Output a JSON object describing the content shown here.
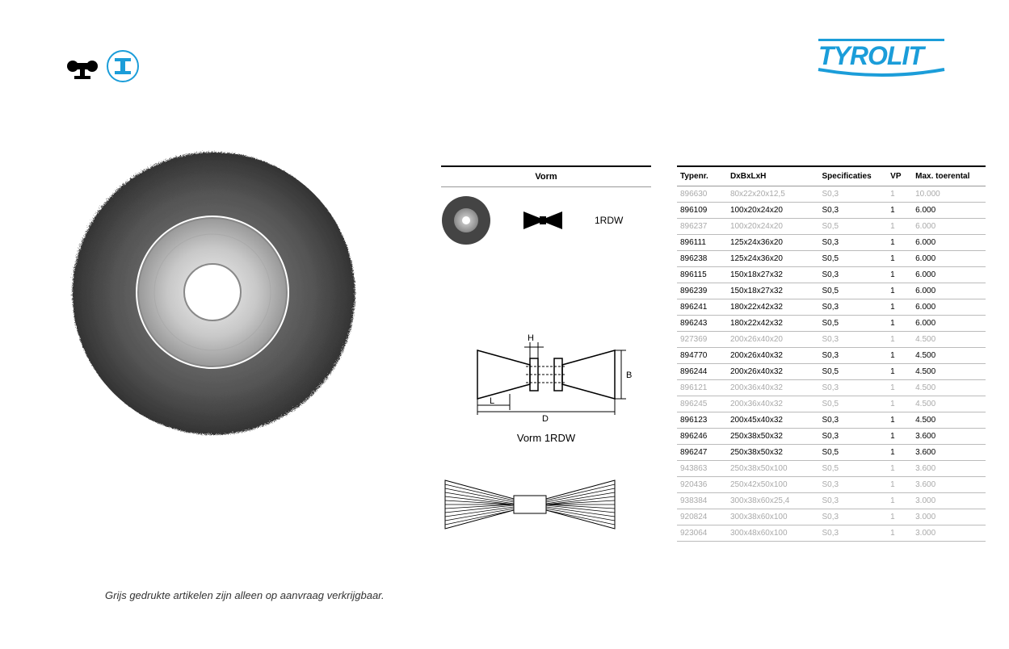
{
  "brand": "Tyrolit",
  "brand_color": "#1b9dd9",
  "icons": [
    "grinder-icon",
    "steel-profile-icon"
  ],
  "vorm_header": "Vorm",
  "vorm_code": "1RDW",
  "schematic_caption": "Vorm 1RDW",
  "schematic_labels": {
    "H": "H",
    "B": "B",
    "L": "L",
    "D": "D"
  },
  "footnote": "Grijs gedrukte artikelen zijn alleen op aanvraag verkrijgbaar.",
  "table": {
    "columns": [
      "Typenr.",
      "DxBxLxH",
      "Specificaties",
      "VP",
      "Max. toerental"
    ],
    "rows": [
      {
        "type": "896630",
        "dim": "80x22x20x12,5",
        "spec": "S0,3",
        "vp": "1",
        "max": "10.000",
        "dimmed": true
      },
      {
        "type": "896109",
        "dim": "100x20x24x20",
        "spec": "S0,3",
        "vp": "1",
        "max": "6.000",
        "dimmed": false
      },
      {
        "type": "896237",
        "dim": "100x20x24x20",
        "spec": "S0,5",
        "vp": "1",
        "max": "6.000",
        "dimmed": true
      },
      {
        "type": "896111",
        "dim": "125x24x36x20",
        "spec": "S0,3",
        "vp": "1",
        "max": "6.000",
        "dimmed": false
      },
      {
        "type": "896238",
        "dim": "125x24x36x20",
        "spec": "S0,5",
        "vp": "1",
        "max": "6.000",
        "dimmed": false
      },
      {
        "type": "896115",
        "dim": "150x18x27x32",
        "spec": "S0,3",
        "vp": "1",
        "max": "6.000",
        "dimmed": false
      },
      {
        "type": "896239",
        "dim": "150x18x27x32",
        "spec": "S0,5",
        "vp": "1",
        "max": "6.000",
        "dimmed": false
      },
      {
        "type": "896241",
        "dim": "180x22x42x32",
        "spec": "S0,3",
        "vp": "1",
        "max": "6.000",
        "dimmed": false
      },
      {
        "type": "896243",
        "dim": "180x22x42x32",
        "spec": "S0,5",
        "vp": "1",
        "max": "6.000",
        "dimmed": false
      },
      {
        "type": "927369",
        "dim": "200x26x40x20",
        "spec": "S0,3",
        "vp": "1",
        "max": "4.500",
        "dimmed": true
      },
      {
        "type": "894770",
        "dim": "200x26x40x32",
        "spec": "S0,3",
        "vp": "1",
        "max": "4.500",
        "dimmed": false
      },
      {
        "type": "896244",
        "dim": "200x26x40x32",
        "spec": "S0,5",
        "vp": "1",
        "max": "4.500",
        "dimmed": false
      },
      {
        "type": "896121",
        "dim": "200x36x40x32",
        "spec": "S0,3",
        "vp": "1",
        "max": "4.500",
        "dimmed": true
      },
      {
        "type": "896245",
        "dim": "200x36x40x32",
        "spec": "S0,5",
        "vp": "1",
        "max": "4.500",
        "dimmed": true
      },
      {
        "type": "896123",
        "dim": "200x45x40x32",
        "spec": "S0,3",
        "vp": "1",
        "max": "4.500",
        "dimmed": false
      },
      {
        "type": "896246",
        "dim": "250x38x50x32",
        "spec": "S0,3",
        "vp": "1",
        "max": "3.600",
        "dimmed": false
      },
      {
        "type": "896247",
        "dim": "250x38x50x32",
        "spec": "S0,5",
        "vp": "1",
        "max": "3.600",
        "dimmed": false
      },
      {
        "type": "943863",
        "dim": "250x38x50x100",
        "spec": "S0,5",
        "vp": "1",
        "max": "3.600",
        "dimmed": true
      },
      {
        "type": "920436",
        "dim": "250x42x50x100",
        "spec": "S0,3",
        "vp": "1",
        "max": "3.600",
        "dimmed": true
      },
      {
        "type": "938384",
        "dim": "300x38x60x25,4",
        "spec": "S0,3",
        "vp": "1",
        "max": "3.000",
        "dimmed": true
      },
      {
        "type": "920824",
        "dim": "300x38x60x100",
        "spec": "S0,3",
        "vp": "1",
        "max": "3.000",
        "dimmed": true
      },
      {
        "type": "923064",
        "dim": "300x48x60x100",
        "spec": "S0,3",
        "vp": "1",
        "max": "3.000",
        "dimmed": true
      }
    ]
  },
  "styling": {
    "background": "#ffffff",
    "text_color": "#000000",
    "dimmed_color": "#aaaaaa",
    "border_color": "#bbbbbb",
    "header_border": "#000000",
    "font_size_table": 10,
    "font_size_caption": 13
  }
}
